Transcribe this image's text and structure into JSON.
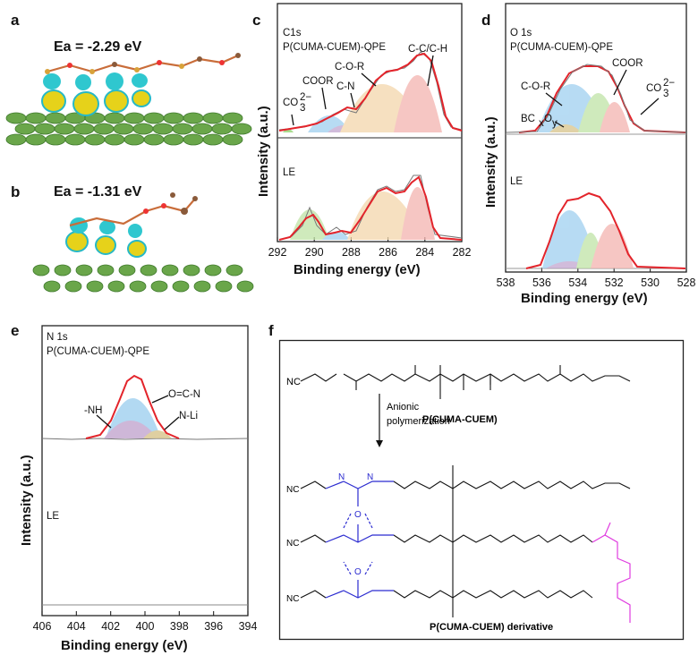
{
  "panels": {
    "a": {
      "letter": "a",
      "energy": "Ea = -2.29 eV"
    },
    "b": {
      "letter": "b",
      "energy": "Ea = -1.31 eV"
    },
    "c": {
      "letter": "c",
      "header1": "C1s",
      "header2": "P(CUMA-CUEM)-QPE",
      "le": "LE",
      "ann": [
        "CO",
        "COOR",
        "C-N",
        "C-O-R",
        "C-C/C-H"
      ],
      "co3_sub": "3",
      "co3_sup": "2−"
    },
    "d": {
      "letter": "d",
      "header1": "O 1s",
      "header2": "P(CUMA-CUEM)-QPE",
      "le": "LE",
      "ann": [
        "C-O-R",
        "COOR",
        "CO",
        "BC",
        "O"
      ],
      "co3_sub": "3",
      "co3_sup": "2−",
      "bc_x": "x",
      "bc_y": "y"
    },
    "e": {
      "letter": "e",
      "header1": "N 1s",
      "header2": "P(CUMA-CUEM)-QPE",
      "le": "LE",
      "ann": [
        "-NH",
        "O=C-N",
        "N-Li"
      ]
    },
    "f": {
      "letter": "f",
      "reactant_label": "P(CUMA-CUEM)",
      "arrow_label1": "Anionic",
      "arrow_label2": "polymerization",
      "product_label": "P(CUMA-CUEM) derivative",
      "nc": "NC",
      "nh": "N",
      "h": "H",
      "o": "O"
    }
  },
  "chart_data": [
    {
      "panel": "c",
      "type": "line",
      "title": "C1s",
      "xlabel": "Binding energy (eV)",
      "ylabel": "Intensity (a.u.)",
      "xlim": [
        292,
        282
      ],
      "xticks": [
        292,
        290,
        288,
        286,
        284,
        282
      ],
      "series": [
        {
          "name": "P(CUMA-CUEM)-QPE",
          "peaks_eV": [
            290.3,
            289.0,
            287.6,
            286.3,
            284.8
          ]
        },
        {
          "name": "LE",
          "peaks_eV": [
            290.4,
            289.0,
            286.1,
            284.8
          ]
        }
      ]
    },
    {
      "panel": "d",
      "type": "line",
      "title": "O 1s",
      "xlabel": "Binding energy (eV)",
      "ylabel": "Intensity (a.u.)",
      "xlim": [
        538,
        528
      ],
      "xticks": [
        538,
        536,
        534,
        532,
        530,
        528
      ],
      "series": [
        {
          "name": "P(CUMA-CUEM)-QPE",
          "peaks_eV": [
            533.9,
            533.5,
            532.5,
            531.6
          ]
        },
        {
          "name": "LE",
          "peaks_eV": [
            533.5,
            532.5,
            531.6
          ]
        }
      ]
    },
    {
      "panel": "e",
      "type": "line",
      "title": "N 1s",
      "xlabel": "Binding energy (eV)",
      "ylabel": "Intensity (a.u.)",
      "xlim": [
        406,
        394
      ],
      "xticks": [
        406,
        404,
        402,
        400,
        398,
        396,
        394
      ],
      "series": [
        {
          "name": "P(CUMA-CUEM)-QPE",
          "peaks_eV": [
            400.4,
            399.8,
            398.9
          ]
        },
        {
          "name": "LE",
          "peaks_eV": []
        }
      ]
    }
  ],
  "colors": {
    "fit": "#e3242b",
    "raw": "#777777",
    "blue_peak": "#9fd0f0",
    "green_peak": "#bfe3a6",
    "orange_peak": "#f3d6ac",
    "pink_peak": "#f4b4b0",
    "purple_peak": "#c2a6cf",
    "olive_peak": "#d8c48a",
    "chem_blue": "#2b2bd0",
    "chem_magenta": "#e03ce0"
  }
}
